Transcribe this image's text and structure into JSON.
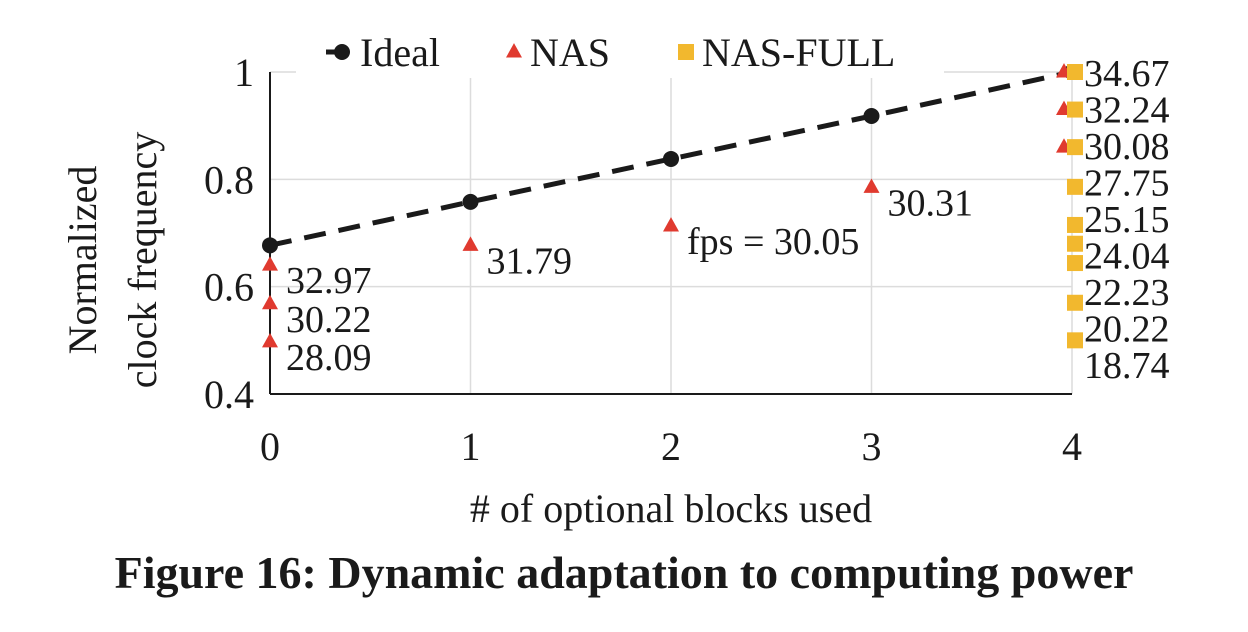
{
  "chart_data": {
    "type": "scatter",
    "xlabel": "# of optional blocks used",
    "ylabel": [
      "Normalized",
      "clock frequency"
    ],
    "xlim": [
      0,
      4
    ],
    "ylim": [
      0.4,
      1
    ],
    "xticks": [
      "0",
      "1",
      "2",
      "3",
      "4"
    ],
    "yticks": [
      "0.4",
      "0.6",
      "0.8",
      "1"
    ],
    "grid": true,
    "legend_position": "top",
    "series": [
      {
        "name": "Ideal",
        "marker": "circle",
        "line": "dashed",
        "color": "#1a1a1a",
        "points": [
          {
            "x": 0,
            "y": 0.677
          },
          {
            "x": 1,
            "y": 0.758
          },
          {
            "x": 2,
            "y": 0.838
          },
          {
            "x": 3,
            "y": 0.918
          },
          {
            "x": 4,
            "y": 1.0
          }
        ]
      },
      {
        "name": "NAS",
        "marker": "triangle",
        "color": "#e03a2f",
        "points": [
          {
            "x": 0,
            "y": 0.64,
            "label": "32.97"
          },
          {
            "x": 0,
            "y": 0.568,
            "label": "30.22"
          },
          {
            "x": 0,
            "y": 0.497,
            "label": "28.09"
          },
          {
            "x": 1,
            "y": 0.677,
            "label": "31.79"
          },
          {
            "x": 2,
            "y": 0.713,
            "label": "fps = 30.05"
          },
          {
            "x": 3,
            "y": 0.785,
            "label": "30.31"
          },
          {
            "x": 4,
            "y": 1.0
          },
          {
            "x": 4,
            "y": 0.93
          },
          {
            "x": 4,
            "y": 0.86
          }
        ]
      },
      {
        "name": "NAS-FULL",
        "marker": "square",
        "color": "#f2b82e",
        "points": [
          {
            "x": 4,
            "y": 1.0
          },
          {
            "x": 4,
            "y": 0.93
          },
          {
            "x": 4,
            "y": 0.86
          },
          {
            "x": 4,
            "y": 0.786
          },
          {
            "x": 4,
            "y": 0.715
          },
          {
            "x": 4,
            "y": 0.68
          },
          {
            "x": 4,
            "y": 0.644
          },
          {
            "x": 4,
            "y": 0.57
          },
          {
            "x": 4,
            "y": 0.5
          }
        ]
      }
    ],
    "right_labels": [
      "34.67",
      "32.24",
      "30.08",
      "27.75",
      "25.15",
      "24.04",
      "22.23",
      "20.22",
      "18.74"
    ]
  },
  "caption": "Figure 16: Dynamic adaptation to computing power"
}
